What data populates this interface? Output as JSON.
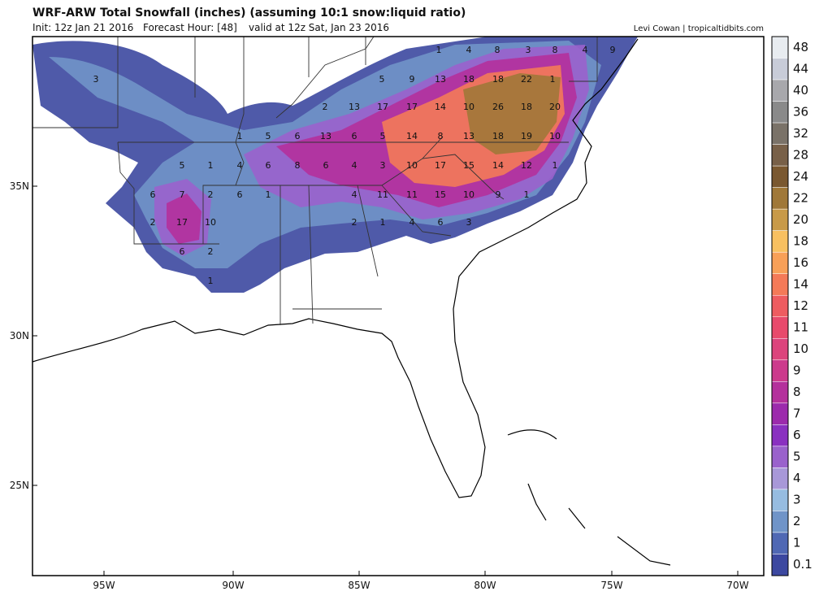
{
  "header": {
    "title": "WRF-ARW Total Snowfall (inches) (assuming 10:1 snow:liquid ratio)",
    "init": "Init: 12z Jan 21 2016",
    "forecast_hour": "Forecast Hour: [48]",
    "valid": "valid at 12z Sat, Jan 23 2016",
    "credit": "Levi Cowan | tropicaltidbits.com"
  },
  "map": {
    "lon_labels": [
      "95W",
      "90W",
      "85W",
      "80W",
      "75W",
      "70W"
    ],
    "lat_labels": [
      "35N",
      "30N",
      "25N"
    ],
    "point_labels": [
      1,
      4,
      8,
      3,
      8,
      4,
      9,
      3,
      5,
      9,
      13,
      18,
      18,
      22,
      1,
      2,
      13,
      17,
      17,
      14,
      10,
      26,
      18,
      20,
      1,
      5,
      6,
      13,
      6,
      5,
      14,
      8,
      13,
      18,
      19,
      10,
      5,
      1,
      4,
      6,
      8,
      6,
      4,
      3,
      10,
      17,
      15,
      14,
      12,
      1,
      6,
      7,
      2,
      6,
      1,
      4,
      11,
      11,
      15,
      10,
      9,
      1,
      2,
      17,
      10,
      2,
      1,
      4,
      6,
      3,
      6,
      2,
      1
    ]
  },
  "colorbar": {
    "levels": [
      48,
      44,
      40,
      36,
      32,
      28,
      24,
      22,
      20,
      18,
      16,
      14,
      12,
      11,
      10,
      9,
      8,
      7,
      6,
      5,
      4,
      3,
      2,
      1,
      0.1
    ],
    "colors": [
      "#e8ecf0",
      "#c8ccd8",
      "#a8a8ac",
      "#8a8a8a",
      "#7a7268",
      "#786048",
      "#7a5830",
      "#a07838",
      "#c89a48",
      "#f8c060",
      "#f8a058",
      "#f47a58",
      "#ee5c60",
      "#e84a6c",
      "#dc447c",
      "#cc3a8c",
      "#b4309c",
      "#9c2aac",
      "#8a30c0",
      "#9a62cc",
      "#a898d8",
      "#96bce0",
      "#7094c8",
      "#5068b4",
      "#3c48a0"
    ]
  }
}
